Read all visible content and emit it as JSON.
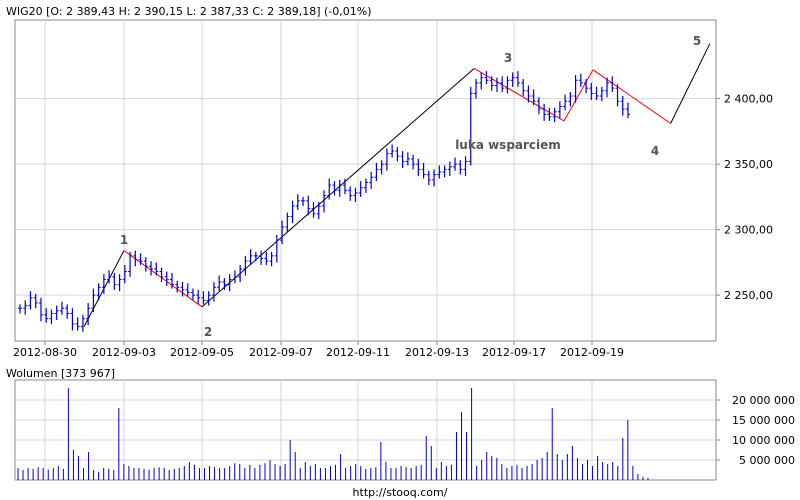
{
  "header": {
    "price_chart_label": "WIG20 [O: 2 389,43  H: 2 390,15  L: 2 387,33  C: 2 389,18] (-0,01%)",
    "volume_chart_label": "Wolumen [373 967]",
    "footer_url": "http://stooq.com/"
  },
  "colors": {
    "bars": "#0000cc",
    "wave_lines": "#ff0000",
    "trend_lines": "#000000",
    "grid": "#d4d4d4",
    "annotation": "#555555"
  },
  "annotations": {
    "wave_1": "1",
    "wave_2": "2",
    "wave_3": "3",
    "wave_4": "4",
    "wave_5": "5",
    "gap_note": "luka wsparciem"
  },
  "chart_data": [
    {
      "type": "ohlc",
      "title": "WIG20 [O: 2 389,43  H: 2 390,15  L: 2 387,33  C: 2 389,18] (-0,01%)",
      "x_tick_labels": [
        "2012-08-30",
        "2012-09-03",
        "2012-09-05",
        "2012-09-07",
        "2012-09-11",
        "2012-09-13",
        "2012-09-17",
        "2012-09-19"
      ],
      "y_tick_values": [
        2250,
        2300,
        2350,
        2400
      ],
      "y_tick_labels": [
        "2 250,00",
        "2 300,00",
        "2 350,00",
        "2 400,00"
      ],
      "ylim": [
        2215,
        2460
      ],
      "grid": true,
      "intraday_prices": [
        2240,
        2242,
        2248,
        2244,
        2235,
        2232,
        2236,
        2238,
        2240,
        2236,
        2228,
        2226,
        2232,
        2240,
        2250,
        2256,
        2262,
        2264,
        2258,
        2262,
        2268,
        2280,
        2277,
        2276,
        2272,
        2270,
        2268,
        2264,
        2262,
        2258,
        2256,
        2254,
        2252,
        2250,
        2248,
        2246,
        2250,
        2256,
        2260,
        2258,
        2262,
        2264,
        2270,
        2276,
        2280,
        2280,
        2278,
        2276,
        2280,
        2292,
        2302,
        2310,
        2318,
        2322,
        2322,
        2316,
        2312,
        2318,
        2326,
        2334,
        2330,
        2334,
        2330,
        2326,
        2328,
        2332,
        2336,
        2340,
        2346,
        2350,
        2358,
        2360,
        2356,
        2352,
        2354,
        2350,
        2346,
        2342,
        2338,
        2342,
        2344,
        2346,
        2348,
        2350,
        2346,
        2352,
        2404,
        2412,
        2416,
        2414,
        2410,
        2412,
        2408,
        2414,
        2416,
        2412,
        2406,
        2402,
        2398,
        2392,
        2388,
        2386,
        2390,
        2394,
        2398,
        2402,
        2414,
        2412,
        2408,
        2404,
        2402,
        2406,
        2412,
        2408,
        2398,
        2392,
        2388
      ],
      "wave_points": [
        {
          "label": "1",
          "date": "2012-09-03",
          "price": 2284
        },
        {
          "label": "2",
          "date": "2012-09-05",
          "price": 2241
        },
        {
          "label": "3",
          "date": "2012-09-16",
          "price": 2423
        },
        {
          "label": "4",
          "date": "2012-09-21",
          "price": 2381
        },
        {
          "label": "5",
          "date": "2012-09-22",
          "price": 2442
        }
      ]
    },
    {
      "type": "bar",
      "title": "Wolumen [373 967]",
      "y_tick_values": [
        5000000,
        10000000,
        15000000,
        20000000
      ],
      "y_tick_labels": [
        "5 000 000",
        "10 000 000",
        "15 000 000",
        "20 000 000"
      ],
      "ylim": [
        0,
        25000000
      ],
      "grid": true,
      "volumes": [
        3000000,
        2500000,
        3000000,
        2800000,
        3200000,
        3000000,
        2600000,
        3000000,
        3500000,
        2800000,
        23000000,
        7500000,
        6000000,
        3000000,
        7000000,
        2500000,
        2000000,
        3000000,
        2800000,
        2500000,
        18000000,
        4000000,
        3500000,
        3000000,
        3000000,
        2800000,
        2600000,
        3000000,
        3200000,
        3000000,
        2500000,
        2800000,
        3000000,
        3500000,
        4500000,
        3800000,
        3000000,
        3000000,
        3500000,
        3200000,
        3000000,
        3000000,
        3500000,
        4200000,
        4000000,
        3000000,
        3800000,
        3000000,
        3800000,
        4200000,
        5000000,
        4000000,
        3500000,
        4000000,
        10000000,
        7000000,
        3000000,
        4500000,
        3500000,
        4000000,
        3000000,
        3000000,
        3500000,
        3800000,
        6500000,
        3000000,
        3500000,
        4000000,
        3500000,
        2800000,
        3000000,
        3200000,
        9500000,
        4500000,
        3000000,
        3000000,
        3500000,
        3200000,
        3000000,
        3500000,
        3800000,
        11000000,
        8500000,
        3000000,
        4500000,
        3500000,
        3800000,
        12000000,
        17000000,
        12000000,
        23000000,
        3500000,
        5000000,
        7000000,
        6000000,
        5500000,
        4000000,
        3000000,
        3500000,
        3800000,
        3000000,
        3500000,
        4000000,
        5000000,
        5500000,
        7000000,
        18000000,
        6500000,
        5000000,
        6500000,
        8500000,
        5500000,
        4000000,
        5000000,
        3500000,
        6000000,
        4500000,
        4000000,
        4500000,
        3500000,
        10500000,
        15000000,
        3500000,
        1500000,
        800000,
        500000
      ]
    }
  ]
}
